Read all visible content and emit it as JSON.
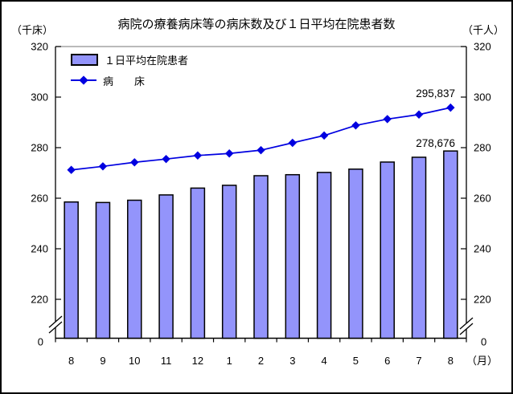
{
  "window": {
    "background": "#FFFFFF",
    "border_color": "#000000"
  },
  "header": {
    "title": "病院の療養病床等の病床数及び１日平均在院患者数",
    "left_unit": "（千床）",
    "right_unit": "（千人）"
  },
  "chart_data": {
    "type": "bar+line",
    "title": "病院の療養病床等の病床数及び１日平均在院患者数",
    "categories": [
      "8",
      "9",
      "10",
      "11",
      "12",
      "1",
      "2",
      "3",
      "4",
      "5",
      "6",
      "7",
      "8"
    ],
    "x_axis_unit_label": "（月）",
    "y_tick_values": [
      320,
      300,
      280,
      260,
      240,
      220
    ],
    "y_tick_labels": [
      "320",
      "300",
      "280",
      "260",
      "240",
      "220"
    ],
    "y_zero_label": "0",
    "ylim_display_top": 320,
    "ylim_display_break": 220,
    "axis_break": true,
    "grid": false,
    "dual_axis_same_scale": true,
    "legend_position": "inside-top-left",
    "colors": {
      "bar_fill": "#9394FB",
      "bar_border": "#000000",
      "line": "#0000E0",
      "plot_top_border": "#909090",
      "axis": "#000000"
    },
    "series": [
      {
        "name": "１日平均在院患者",
        "type": "bar",
        "values": [
          258.5,
          258.3,
          259.2,
          261.3,
          264.0,
          265.1,
          268.9,
          269.3,
          270.2,
          271.5,
          274.3,
          276.2,
          278.676
        ],
        "last_point_label": "278,676"
      },
      {
        "name": "病　　床",
        "type": "line",
        "marker": "diamond",
        "values": [
          271.2,
          272.6,
          274.2,
          275.5,
          276.9,
          277.7,
          279.0,
          281.9,
          284.8,
          288.8,
          291.3,
          293.1,
          295.837
        ],
        "last_point_label": "295,837"
      }
    ]
  }
}
